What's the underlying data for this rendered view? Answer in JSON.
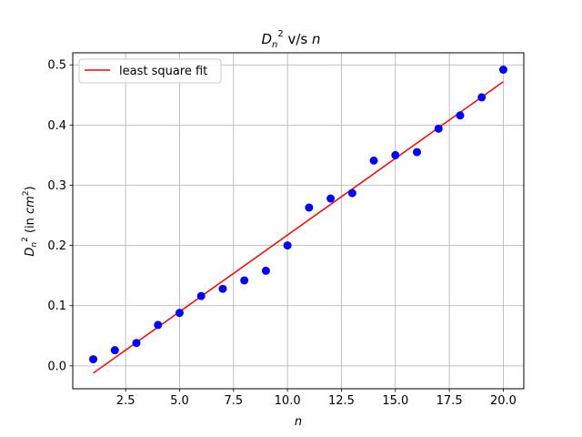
{
  "chart_data": {
    "type": "scatter",
    "title": "Dn² v/s n",
    "xlabel": "n",
    "ylabel": "Dn² (in cm²)",
    "xlim": [
      0.05,
      20.95
    ],
    "ylim": [
      -0.038,
      0.52
    ],
    "xticks": [
      2.5,
      5.0,
      7.5,
      10.0,
      12.5,
      15.0,
      17.5,
      20.0
    ],
    "xtick_labels": [
      "2.5",
      "5.0",
      "7.5",
      "10.0",
      "12.5",
      "15.0",
      "17.5",
      "20.0"
    ],
    "yticks": [
      0.0,
      0.1,
      0.2,
      0.3,
      0.4,
      0.5
    ],
    "ytick_labels": [
      "0.0",
      "0.1",
      "0.2",
      "0.3",
      "0.4",
      "0.5"
    ],
    "grid": true,
    "legend_position": "top-left",
    "series": [
      {
        "type": "scatter",
        "color": "#0000ff",
        "x": [
          1,
          2,
          3,
          4,
          5,
          6,
          7,
          8,
          9,
          10,
          11,
          12,
          13,
          14,
          15,
          16,
          17,
          18,
          19,
          20
        ],
        "y": [
          0.011,
          0.026,
          0.038,
          0.068,
          0.088,
          0.116,
          0.128,
          0.142,
          0.158,
          0.2,
          0.263,
          0.278,
          0.287,
          0.341,
          0.35,
          0.355,
          0.394,
          0.416,
          0.446,
          0.492
        ]
      },
      {
        "name": "least square fit",
        "type": "line",
        "color": "#ff0000",
        "x": [
          1,
          20
        ],
        "y": [
          -0.012,
          0.472
        ]
      }
    ]
  }
}
